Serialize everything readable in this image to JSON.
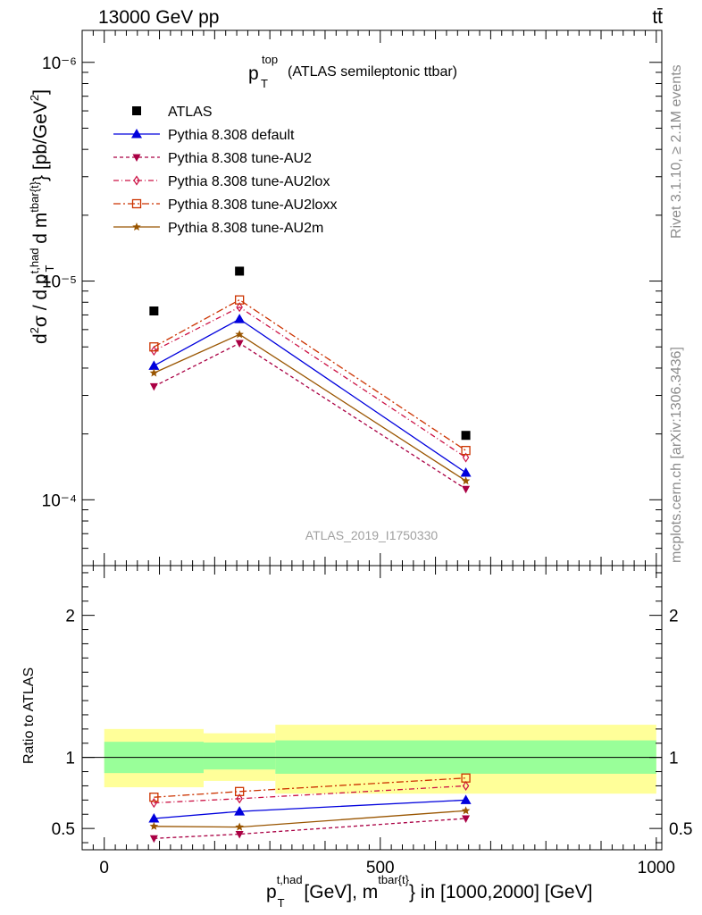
{
  "header": {
    "process": "13000 GeV pp",
    "final_state": "tt̄"
  },
  "side_labels": {
    "rivet": "Rivet 3.1.10, ≥ 2.1M events",
    "mcplots": "mcplots.cern.ch [arXiv:1306.3436]"
  },
  "chart_data": [
    {
      "type": "line",
      "panel": "main",
      "title": {
        "main": "p",
        "sup": "top",
        "sub": "T",
        "rest": "(ATLAS semileptonic ttbar)"
      },
      "ylabel": "d²σ / d p_T^{t,had} d m^{tbar{t}} [pb/GeV²]",
      "yscale": "log",
      "ylim": [
        5e-07,
        0.00014
      ],
      "xlim": [
        -40,
        1010
      ],
      "ytick_labels": [
        "10⁻⁴",
        "10⁻⁵",
        "10⁻⁶"
      ],
      "watermark": "ATLAS_2019_I1750330",
      "legend_position": "top-left",
      "series": [
        {
          "name": "ATLAS",
          "marker": "square",
          "color": "#000000",
          "dash": "none",
          "x": [
            90,
            245,
            655
          ],
          "y": [
            7.3e-06,
            1.11e-05,
            1.97e-06
          ]
        },
        {
          "name": "Pythia 8.308 default",
          "marker": "triangle-up",
          "color": "#0000dd",
          "dash": "none",
          "x": [
            90,
            245,
            655
          ],
          "y": [
            4.1e-06,
            6.7e-06,
            1.33e-06
          ]
        },
        {
          "name": "Pythia 8.308 tune-AU2",
          "marker": "triangle-down",
          "color": "#aa0044",
          "dash": "4,3",
          "x": [
            90,
            245,
            655
          ],
          "y": [
            3.3e-06,
            5.2e-06,
            1.12e-06
          ]
        },
        {
          "name": "Pythia 8.308 tune-AU2lox",
          "marker": "diamond-open",
          "color": "#cc1144",
          "dash": "6,3,1,3",
          "x": [
            90,
            245,
            655
          ],
          "y": [
            4.8e-06,
            7.6e-06,
            1.56e-06
          ]
        },
        {
          "name": "Pythia 8.308 tune-AU2loxx",
          "marker": "square-open",
          "color": "#cc3300",
          "dash": "8,3,2,3",
          "x": [
            90,
            245,
            655
          ],
          "y": [
            5e-06,
            8.2e-06,
            1.68e-06
          ]
        },
        {
          "name": "Pythia 8.308 tune-AU2m",
          "marker": "star",
          "color": "#995500",
          "dash": "none",
          "x": [
            90,
            245,
            655
          ],
          "y": [
            3.8e-06,
            5.7e-06,
            1.22e-06
          ]
        }
      ]
    },
    {
      "type": "line",
      "panel": "ratio",
      "ylabel": "Ratio to ATLAS",
      "ylim": [
        0.35,
        2.35
      ],
      "xlim": [
        -40,
        1010
      ],
      "ytick_labels": [
        "0.5",
        "1",
        "2"
      ],
      "xtick_labels": [
        "0",
        "500",
        "1000"
      ],
      "xlabel": "p_T^{t,had} [GeV], m^{tbar{t}} in [1000,2000] [GeV]",
      "uncertainty_bands": [
        {
          "x0": 0,
          "x1": 180,
          "inner": [
            0.89,
            1.11
          ],
          "outer": [
            0.79,
            1.2
          ]
        },
        {
          "x0": 180,
          "x1": 310,
          "inner": [
            0.915,
            1.105
          ],
          "outer": [
            0.835,
            1.17
          ]
        },
        {
          "x0": 310,
          "x1": 1000,
          "inner": [
            0.885,
            1.12
          ],
          "outer": [
            0.745,
            1.23
          ]
        }
      ],
      "band_colors": {
        "inner": "#99ff99",
        "outer": "#ffff99"
      },
      "series": [
        {
          "name": "Pythia 8.308 default",
          "x": [
            90,
            245,
            655
          ],
          "y": [
            0.57,
            0.62,
            0.7
          ]
        },
        {
          "name": "Pythia 8.308 tune-AU2",
          "x": [
            90,
            245,
            655
          ],
          "y": [
            0.43,
            0.46,
            0.57
          ]
        },
        {
          "name": "Pythia 8.308 tune-AU2lox",
          "x": [
            90,
            245,
            655
          ],
          "y": [
            0.68,
            0.71,
            0.8
          ]
        },
        {
          "name": "Pythia 8.308 tune-AU2loxx",
          "x": [
            90,
            245,
            655
          ],
          "y": [
            0.72,
            0.76,
            0.855
          ]
        },
        {
          "name": "Pythia 8.308 tune-AU2m",
          "x": [
            90,
            245,
            655
          ],
          "y": [
            0.515,
            0.51,
            0.625
          ]
        }
      ]
    }
  ]
}
